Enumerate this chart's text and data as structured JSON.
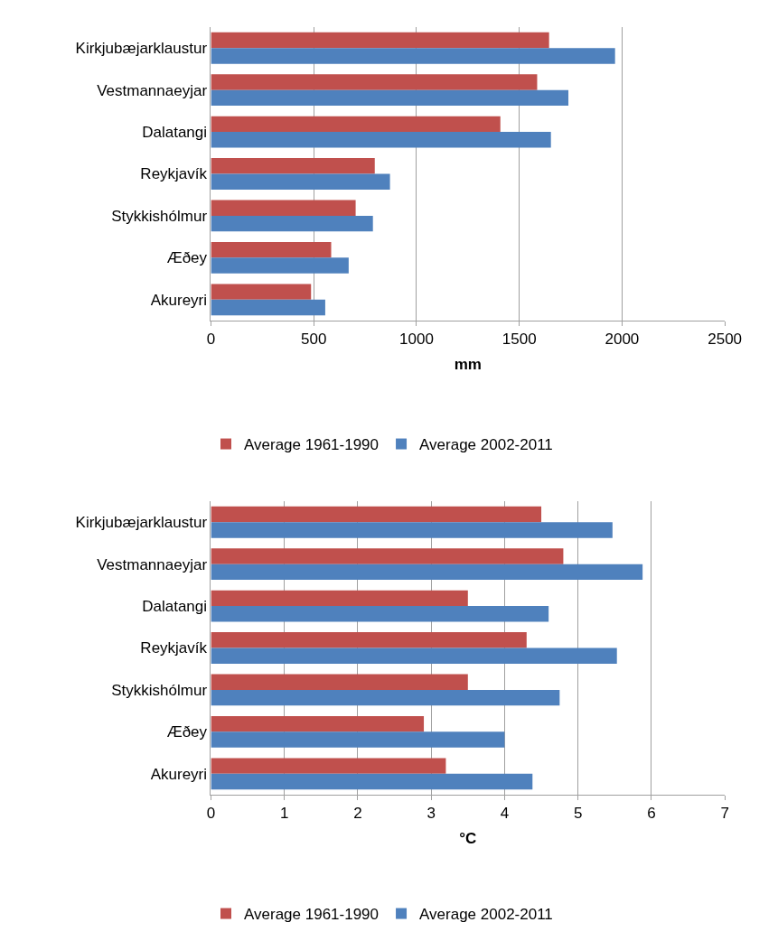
{
  "chart_data": [
    {
      "type": "bar",
      "orientation": "horizontal",
      "xlabel": "mm",
      "categories": [
        "Kirkjubæjarklaustur",
        "Vestmannaeyjar",
        "Dalatangi",
        "Reykjavík",
        "Stykkishólmur",
        "Æðey",
        "Akureyri"
      ],
      "series": [
        {
          "name": "Average 1961-1990",
          "color": "#c0504d",
          "values": [
            1645,
            1587,
            1408,
            797,
            704,
            585,
            487
          ]
        },
        {
          "name": "Average 2002-2011",
          "color": "#4f81bd",
          "values": [
            1966,
            1739,
            1654,
            871,
            788,
            670,
            556
          ]
        }
      ],
      "xlim": [
        0,
        2500
      ],
      "xticks": [
        0,
        500,
        1000,
        1500,
        2000,
        2500
      ],
      "grid": "x",
      "legend": "bottom"
    },
    {
      "type": "bar",
      "orientation": "horizontal",
      "xlabel": "°C",
      "categories": [
        "Kirkjubæjarklaustur",
        "Vestmannaeyjar",
        "Dalatangi",
        "Reykjavík",
        "Stykkishólmur",
        "Æðey",
        "Akureyri"
      ],
      "series": [
        {
          "name": "Average 1961-1990",
          "color": "#c0504d",
          "values": [
            4.5,
            4.8,
            3.5,
            4.3,
            3.5,
            2.9,
            3.2
          ]
        },
        {
          "name": "Average 2002-2011",
          "color": "#4f81bd",
          "values": [
            5.47,
            5.88,
            4.6,
            5.53,
            4.75,
            4.0,
            4.38
          ]
        }
      ],
      "xlim": [
        0,
        7
      ],
      "xticks": [
        0,
        1,
        2,
        3,
        4,
        5,
        6,
        7
      ],
      "grid": "x",
      "legend": "bottom"
    }
  ]
}
